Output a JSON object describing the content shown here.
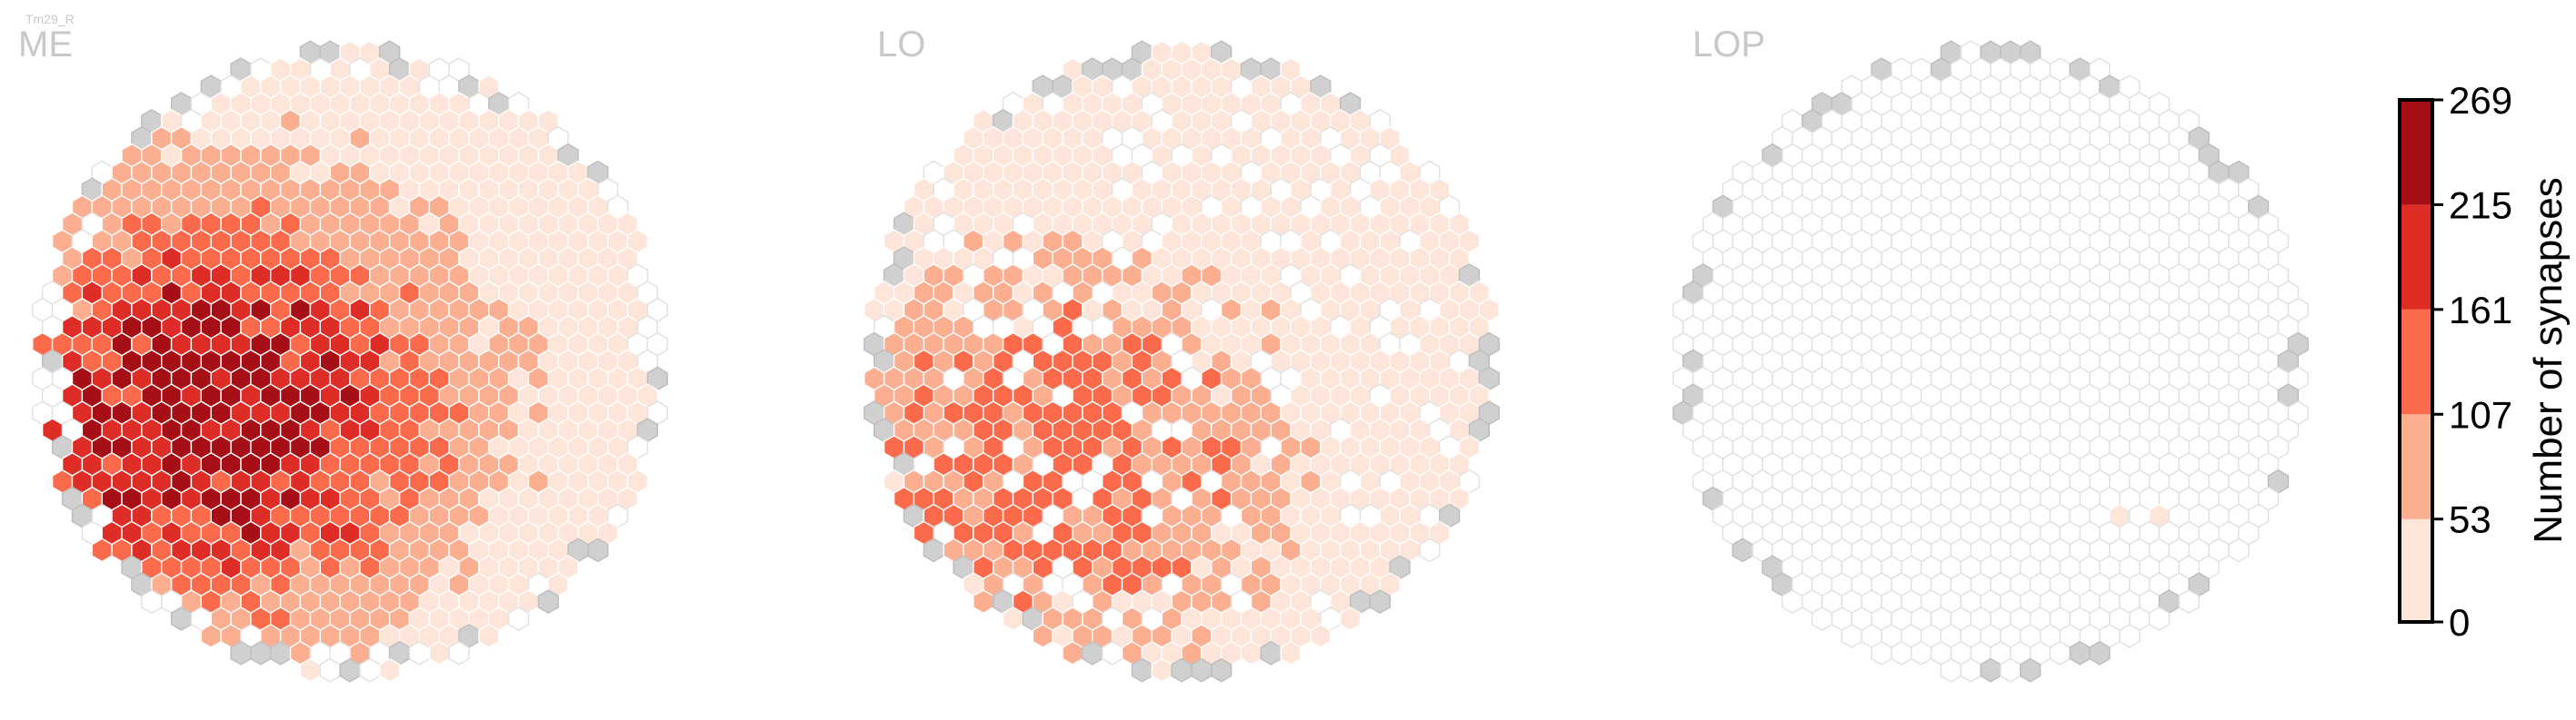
{
  "figure": {
    "cell_type": "Tm29_R",
    "colors": {
      "no_data_fill": "#d0d0d0",
      "empty_fill": "#ffffff",
      "empty_stroke": "#e0e0e0",
      "region_label": "#c8c8c8",
      "cell_type_label": "#c8c8c8"
    }
  },
  "chart_data": [
    {
      "type": "heatmap",
      "title": "ME",
      "shape": "hexagonal eye map",
      "profile": "dense high synapse counts, peak left-center",
      "max_value": 269
    },
    {
      "type": "heatmap",
      "title": "LO",
      "shape": "hexagonal eye map",
      "profile": "moderate counts, mostly light, denser lower-left",
      "max_value": 160
    },
    {
      "type": "heatmap",
      "title": "LOP",
      "shape": "hexagonal eye map",
      "profile": "nearly empty, a few low values",
      "max_value": 40
    }
  ],
  "colorbar": {
    "label": "Number of synapses",
    "ticks": [
      "0",
      "53",
      "107",
      "161",
      "215",
      "269"
    ],
    "tick_values": [
      0,
      53,
      107,
      161,
      215,
      269
    ],
    "bins": [
      {
        "min": 0,
        "max": 53,
        "color": "#fee5d9"
      },
      {
        "min": 53,
        "max": 107,
        "color": "#fcae91"
      },
      {
        "min": 107,
        "max": 161,
        "color": "#fb6a4a"
      },
      {
        "min": 161,
        "max": 215,
        "color": "#de2d26"
      },
      {
        "min": 215,
        "max": 269,
        "color": "#a50f15"
      }
    ]
  }
}
